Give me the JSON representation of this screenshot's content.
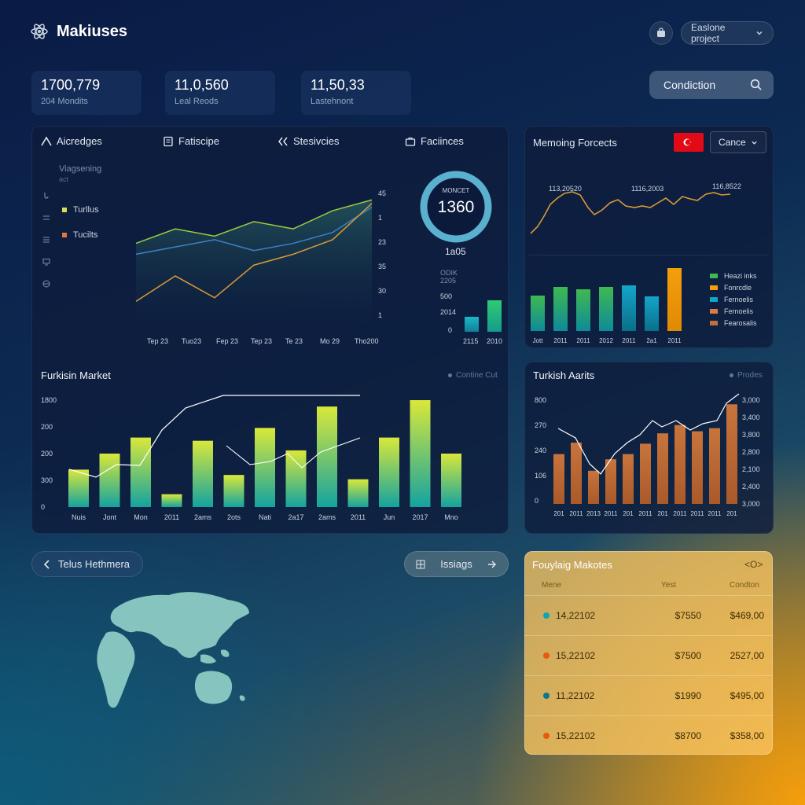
{
  "header": {
    "app_title": "Makiuses",
    "project_label": "Easlone project"
  },
  "stats": [
    {
      "value": "1700,779",
      "label": "204 Mondits"
    },
    {
      "value": "11,0,560",
      "label": "Leal Reods"
    },
    {
      "value": "11,50,33",
      "label": "Lastehnont"
    }
  ],
  "condition_button": "Condiction",
  "tabs": [
    {
      "label": "Aicredges"
    },
    {
      "label": "Fatiscipe"
    },
    {
      "label": "Stesivcies"
    },
    {
      "label": "Faciinces"
    }
  ],
  "side_panel": {
    "title": "Viagsening",
    "subtitle": "act",
    "legend": [
      "Turllus",
      "Tucilts"
    ]
  },
  "gauge": {
    "label": "MONCET",
    "value": "1360",
    "sub_value": "1a05"
  },
  "line_chart": {
    "x_labels": [
      "Tep 23",
      "Tuo23",
      "Fep 23",
      "Tep 23",
      "Te 23",
      "Mo 29",
      "Tho200"
    ],
    "y_labels": [
      "45",
      "1",
      "23",
      "35",
      "30",
      "1"
    ]
  },
  "mini_bars": {
    "labels": [
      "ODIK",
      "2205",
      "500",
      "2014",
      "0"
    ],
    "x_labels": [
      "2115",
      "2010"
    ]
  },
  "forecast_panel": {
    "title": "Memoing Forcects",
    "dropdown": "Cance",
    "line_values": [
      "113,20520",
      "1116,2003",
      "116,8522"
    ],
    "legend": [
      "Heazi inks",
      "Fonrcdle",
      "Fernoelis",
      "Fernoelis",
      "Fearosalis"
    ],
    "x_labels": [
      "Jott",
      "2011",
      "2011",
      "2012",
      "2011",
      "2a1",
      "2011"
    ]
  },
  "turkish_market": {
    "title": "Furkisin Market",
    "legend": "Contine Cut",
    "y_labels": [
      "1800",
      "200",
      "200",
      "300",
      "0"
    ],
    "x_labels": [
      "Nuis",
      "Jont",
      "Mon",
      "2011",
      "2ams",
      "2ots",
      "Nati",
      "2a17",
      "2ams",
      "2011",
      "Jun",
      "2017",
      "Mno"
    ]
  },
  "turkish_aarts": {
    "title": "Turkish Aarits",
    "legend": "Prodes",
    "y_left": [
      "800",
      "270",
      "240",
      "106",
      "0"
    ],
    "y_right": [
      "3,000",
      "3,400",
      "3,800",
      "2,800",
      "2,100",
      "2,400",
      "3,000"
    ],
    "x_labels": [
      "201",
      "2011",
      "2013",
      "2011",
      "201",
      "2011",
      "201",
      "2011",
      "2011",
      "2011",
      "201"
    ]
  },
  "map_panel": {
    "button": "Telus Hethmera",
    "action": "Issiags"
  },
  "following_table": {
    "title": "Fouylaig Makotes",
    "action": "<O>",
    "headers": [
      "Mene",
      "Yest",
      "Condton"
    ],
    "rows": [
      {
        "name": "14,22102",
        "a": "$7550",
        "b": "$469,00",
        "color": "#0ea5b0"
      },
      {
        "name": "15,22102",
        "a": "$7500",
        "b": "2527,00",
        "color": "#ea580c"
      },
      {
        "name": "11,22102",
        "a": "$1990",
        "b": "$495,00",
        "color": "#0e7490"
      },
      {
        "name": "15,22102",
        "a": "$8700",
        "b": "$358,00",
        "color": "#ea580c"
      }
    ]
  },
  "chart_data": [
    {
      "type": "line",
      "x": [
        "Tep 23",
        "Tuo23",
        "Fep 23",
        "Tep 23",
        "Te 23",
        "Mo 29",
        "Tho200"
      ],
      "series": [
        {
          "values": [
            3.2,
            3.6,
            3.4,
            3.8,
            3.6,
            4.1,
            4.4
          ]
        },
        {
          "values": [
            2.9,
            3.1,
            3.3,
            3.0,
            3.2,
            3.5,
            4.2
          ]
        },
        {
          "values": [
            1.6,
            2.3,
            1.7,
            2.6,
            2.9,
            3.3,
            4.3
          ]
        }
      ]
    },
    {
      "type": "bar",
      "categories": [
        "Jott",
        "2011",
        "2011",
        "2012",
        "2011",
        "2a1",
        "2011"
      ],
      "values": [
        45,
        56,
        53,
        56,
        58,
        44,
        80
      ]
    },
    {
      "type": "bar",
      "categories": [
        "Nuis",
        "Jont",
        "Mon",
        "2011",
        "2ams",
        "2ots",
        "Nati",
        "2a17",
        "2ams",
        "2011",
        "Jun",
        "2017",
        "Mno"
      ],
      "values": [
        35,
        50,
        65,
        12,
        62,
        30,
        74,
        53,
        94,
        26,
        65,
        100,
        50
      ],
      "ylim": [
        0,
        100
      ]
    },
    {
      "type": "bar",
      "categories": [
        "201",
        "2011",
        "2013",
        "2011",
        "201",
        "2011",
        "201",
        "2011",
        "2011",
        "2011",
        "201"
      ],
      "values": [
        48,
        59,
        32,
        43,
        48,
        58,
        68,
        76,
        70,
        73,
        96
      ],
      "ylim": [
        0,
        100
      ]
    }
  ]
}
